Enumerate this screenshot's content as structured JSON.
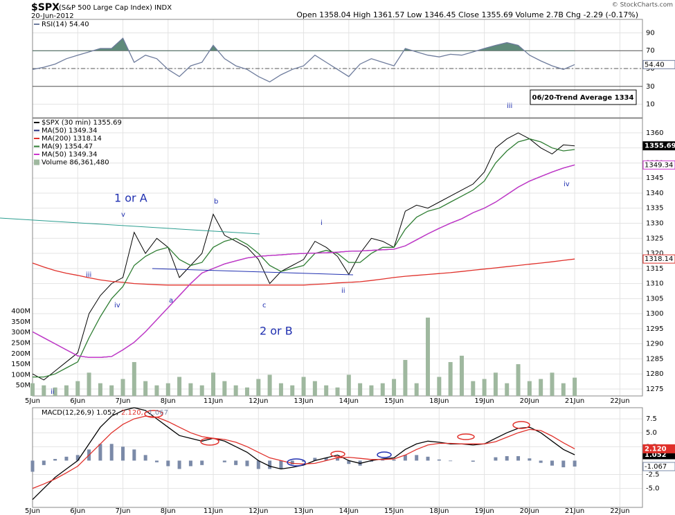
{
  "header": {
    "symbol": "$SPX",
    "name": "(S&P 500 Large Cap Index) INDX",
    "date": "20-Jun-2012",
    "quote": "Open 1358.04 High 1361.57 Low 1346.45 Close 1355.69 Volume 2.7B Chg -2.29 (-0.17%)",
    "copyright": "© StockCharts.com"
  },
  "annotations": [
    "1 or A",
    "v",
    "iii",
    "iv",
    "a",
    "b",
    "c",
    "2 or B",
    "i",
    "ii",
    "iii",
    "iv",
    "ii",
    "06/20-Trend Average 1334"
  ],
  "chart_data": [
    {
      "type": "line",
      "xlim": [
        0,
        13.5
      ],
      "xticks": [
        0,
        1,
        2,
        3,
        4,
        5,
        6,
        7,
        8,
        9,
        10,
        11,
        12,
        13
      ],
      "ylim": [
        -5.1,
        105.1
      ],
      "yticks": [
        90,
        70,
        50,
        30,
        10
      ],
      "levels": [
        70,
        30
      ],
      "midline": 50,
      "grid": true,
      "x": [
        0,
        0.25,
        0.5,
        0.75,
        1,
        1.25,
        1.5,
        1.75,
        2,
        2.25,
        2.5,
        2.75,
        3,
        3.25,
        3.5,
        3.75,
        4,
        4.25,
        4.5,
        4.75,
        5,
        5.25,
        5.5,
        5.75,
        6,
        6.25,
        6.5,
        6.75,
        7,
        7.25,
        7.5,
        7.75,
        8,
        8.25,
        8.5,
        8.75,
        9,
        9.25,
        9.5,
        9.75,
        10,
        10.25,
        10.5,
        10.75,
        11,
        11.25,
        11.5,
        11.75,
        12
      ],
      "series": [
        {
          "name": "RSI(14) 54.40",
          "color": "#6d7b9c",
          "shade_above": 70,
          "last_label": "54.40",
          "values": [
            49,
            51.5,
            55,
            61,
            65,
            68.6,
            72.5,
            72.5,
            84,
            57,
            65,
            61,
            49,
            41,
            53,
            57,
            76,
            61,
            53,
            49,
            41,
            35,
            43,
            49,
            53,
            65,
            57,
            49,
            41,
            55,
            61,
            57,
            53,
            72.5,
            68.6,
            65,
            63,
            66,
            65,
            68.6,
            72.5,
            76,
            79,
            76,
            65,
            58.5,
            53,
            49,
            54.4
          ]
        }
      ]
    },
    {
      "type": "line",
      "xlim": [
        0,
        13.5
      ],
      "ylim": [
        1272.7,
        1364.8
      ],
      "grid": true,
      "xticks": [
        {
          "value": 0,
          "label": "5Jun"
        },
        {
          "value": 1,
          "label": "6Jun"
        },
        {
          "value": 2,
          "label": "7Jun"
        },
        {
          "value": 3,
          "label": "8Jun"
        },
        {
          "value": 4,
          "label": "11Jun"
        },
        {
          "value": 5,
          "label": "12Jun"
        },
        {
          "value": 6,
          "label": "13Jun"
        },
        {
          "value": 7,
          "label": "14Jun"
        },
        {
          "value": 8,
          "label": "15Jun"
        },
        {
          "value": 9,
          "label": "18Jun"
        },
        {
          "value": 10,
          "label": "19Jun"
        },
        {
          "value": 11,
          "label": "20Jun"
        },
        {
          "value": 12,
          "label": "21Jun"
        },
        {
          "value": 13,
          "label": "22Jun"
        }
      ],
      "yticks": [
        1275,
        1280,
        1285,
        1290,
        1295,
        1300,
        1305,
        1310,
        1315,
        1320,
        1325,
        1330,
        1335,
        1340,
        1345,
        1350,
        1355,
        1360
      ],
      "x": [
        0,
        0.25,
        0.5,
        0.75,
        1,
        1.25,
        1.5,
        1.75,
        2,
        2.25,
        2.5,
        2.75,
        3,
        3.25,
        3.5,
        3.75,
        4,
        4.25,
        4.5,
        4.75,
        5,
        5.25,
        5.5,
        5.75,
        6,
        6.25,
        6.5,
        6.75,
        7,
        7.25,
        7.5,
        7.75,
        8,
        8.25,
        8.5,
        8.75,
        9,
        9.25,
        9.5,
        9.75,
        10,
        10.25,
        10.5,
        10.75,
        11,
        11.25,
        11.5,
        11.75,
        12
      ],
      "series": [
        {
          "name": "$SPX (30 min) 1355.69",
          "color": "#000000",
          "last_label": "1355.69",
          "values": [
            1280,
            1278,
            1281,
            1284,
            1287,
            1300,
            1306,
            1310,
            1312,
            1327,
            1320,
            1325,
            1322,
            1312,
            1316,
            1320,
            1333,
            1326,
            1324,
            1322,
            1318,
            1310,
            1314,
            1316,
            1318,
            1324,
            1322,
            1319,
            1313,
            1320,
            1325,
            1324,
            1322,
            1334,
            1336,
            1335,
            1337,
            1339,
            1341,
            1343,
            1347,
            1355,
            1358,
            1360,
            1358,
            1355,
            1353,
            1356,
            1355.69
          ]
        },
        {
          "name": "MA(50) 1349.34",
          "color": "#1f2a7a",
          "values": [
            1294,
            1292,
            1290,
            1288,
            1286,
            1285.5,
            1285.5,
            1285.8,
            1288,
            1290.5,
            1294,
            1298,
            1302,
            1306,
            1310,
            1313.5,
            1315,
            1316.5,
            1317.5,
            1318.5,
            1319,
            1319.3,
            1319.5,
            1319.8,
            1320,
            1320.1,
            1320.2,
            1320.4,
            1320.7,
            1320.8,
            1321,
            1321.2,
            1321.4,
            1322.5,
            1324.5,
            1326.5,
            1328.3,
            1330,
            1331.5,
            1333.5,
            1335,
            1337,
            1339.5,
            1342,
            1344,
            1345.5,
            1347,
            1348.3,
            1349.34
          ]
        },
        {
          "name": "MA(200) 1318.14",
          "color": "#e0302a",
          "last_label": "1318.14",
          "values": [
            1316.8,
            1315.5,
            1314.3,
            1313.4,
            1312.7,
            1311.9,
            1311.2,
            1310.7,
            1310.4,
            1310,
            1309.8,
            1309.6,
            1309.5,
            1309.5,
            1309.5,
            1309.5,
            1309.5,
            1309.5,
            1309.5,
            1309.5,
            1309.5,
            1309.5,
            1309.5,
            1309.5,
            1309.5,
            1309.7,
            1309.9,
            1310.2,
            1310.4,
            1310.6,
            1311,
            1311.5,
            1312,
            1312.4,
            1312.7,
            1313,
            1313.3,
            1313.6,
            1314,
            1314.4,
            1314.8,
            1315.2,
            1315.6,
            1316,
            1316.4,
            1316.8,
            1317.2,
            1317.7,
            1318.14
          ]
        },
        {
          "name": "MA(9) 1354.47",
          "color": "#2e7d32",
          "values": [
            1279,
            1279,
            1280,
            1282,
            1284,
            1292,
            1299,
            1305,
            1309,
            1316,
            1319,
            1321,
            1322,
            1318,
            1316,
            1317,
            1322,
            1324,
            1325,
            1323,
            1320,
            1316,
            1314,
            1315,
            1316,
            1320,
            1321,
            1320,
            1317,
            1317,
            1320,
            1322,
            1322,
            1328,
            1332,
            1334,
            1335,
            1337,
            1339,
            1341,
            1344,
            1350,
            1354,
            1357,
            1358,
            1357,
            1355,
            1354,
            1354.47
          ]
        },
        {
          "name": "MA(50) 1349.34",
          "color": "#cc33cc",
          "last_label": "1349.34",
          "values": [
            1294,
            1292,
            1290,
            1288,
            1286,
            1285.5,
            1285.5,
            1285.8,
            1288,
            1290.5,
            1294,
            1298,
            1302,
            1306,
            1310,
            1313.5,
            1315,
            1316.5,
            1317.5,
            1318.5,
            1319,
            1319.3,
            1319.5,
            1319.8,
            1320,
            1320.1,
            1320.2,
            1320.4,
            1320.7,
            1320.8,
            1321,
            1321.2,
            1321.4,
            1322.5,
            1324.5,
            1326.5,
            1328.3,
            1330,
            1331.5,
            1333.5,
            1335,
            1337,
            1339.5,
            1342,
            1344,
            1345.5,
            1347,
            1348.3,
            1349.34
          ]
        }
      ],
      "volume": {
        "type": "bar",
        "name": "Volume 86,361,480",
        "color": "#9fb89f",
        "ylim": [
          0,
          1311
        ],
        "yticks": [
          {
            "value": 50,
            "label": "50M"
          },
          {
            "value": 100,
            "label": "100M"
          },
          {
            "value": 150,
            "label": "150M"
          },
          {
            "value": 200,
            "label": "200M"
          },
          {
            "value": 250,
            "label": "250M"
          },
          {
            "value": 300,
            "label": "300M"
          },
          {
            "value": 350,
            "label": "350M"
          },
          {
            "value": 400,
            "label": "400M"
          }
        ],
        "values": [
          60,
          50,
          40,
          50,
          70,
          110,
          60,
          50,
          80,
          160,
          70,
          50,
          60,
          90,
          60,
          50,
          110,
          70,
          50,
          40,
          80,
          100,
          60,
          50,
          90,
          70,
          50,
          40,
          100,
          60,
          50,
          60,
          80,
          170,
          60,
          370,
          90,
          160,
          190,
          70,
          80,
          110,
          60,
          150,
          70,
          80,
          110,
          60,
          86.36
        ]
      }
    },
    {
      "type": "line",
      "xlim": [
        0,
        13.5
      ],
      "ylim": [
        -8.4,
        9.5
      ],
      "grid": true,
      "xticks": [
        {
          "value": 0,
          "label": "5Jun"
        },
        {
          "value": 1,
          "label": "6Jun"
        },
        {
          "value": 2,
          "label": "7Jun"
        },
        {
          "value": 3,
          "label": "8Jun"
        },
        {
          "value": 4,
          "label": "11Jun"
        },
        {
          "value": 5,
          "label": "12Jun"
        },
        {
          "value": 6,
          "label": "13Jun"
        },
        {
          "value": 7,
          "label": "14Jun"
        },
        {
          "value": 8,
          "label": "15Jun"
        },
        {
          "value": 9,
          "label": "18Jun"
        },
        {
          "value": 10,
          "label": "19Jun"
        },
        {
          "value": 11,
          "label": "20Jun"
        },
        {
          "value": 12,
          "label": "21Jun"
        },
        {
          "value": 13,
          "label": "22Jun"
        }
      ],
      "yticks": [
        7.5,
        {
          "value": 5,
          "label": "5.0"
        },
        2.5,
        -2.5,
        {
          "value": -5,
          "label": "-5.0"
        }
      ],
      "x": [
        0,
        0.25,
        0.5,
        0.75,
        1,
        1.25,
        1.5,
        1.75,
        2,
        2.25,
        2.5,
        2.75,
        3,
        3.25,
        3.5,
        3.75,
        4,
        4.25,
        4.5,
        4.75,
        5,
        5.25,
        5.5,
        5.75,
        6,
        6.25,
        6.5,
        6.75,
        7,
        7.25,
        7.5,
        7.75,
        8,
        8.25,
        8.5,
        8.75,
        9,
        9.25,
        9.5,
        9.75,
        10,
        10.25,
        10.5,
        10.75,
        11,
        11.25,
        11.5,
        11.75,
        12
      ],
      "series": [
        {
          "name": "MACD(12,26,9) 1.052,",
          "color": "#000000",
          "last_label": "1.052",
          "values": [
            -7,
            -5,
            -3,
            -1.5,
            0,
            3,
            6,
            8,
            9,
            9.5,
            9,
            7.5,
            6,
            4.5,
            4,
            3.5,
            4,
            3.5,
            2.5,
            1.5,
            0,
            -1,
            -1.5,
            -1.2,
            -0.8,
            0,
            0.5,
            1,
            0,
            -0.5,
            0,
            0.3,
            0.5,
            2,
            3,
            3.5,
            3.3,
            3,
            3,
            2.8,
            3,
            4,
            5,
            5.8,
            6,
            5,
            3.5,
            2,
            1.052
          ]
        },
        {
          "name": "2.120,",
          "color": "#e0302a",
          "last_label": "2.120",
          "values": [
            -5,
            -4.2,
            -3.3,
            -2.2,
            -1,
            1,
            3,
            5,
            6.5,
            7.5,
            8,
            7.8,
            7,
            6,
            5,
            4.3,
            4,
            3.8,
            3.3,
            2.5,
            1.5,
            0.5,
            0,
            -0.5,
            -0.6,
            -0.5,
            0,
            0.5,
            0.6,
            0.4,
            0.2,
            0.2,
            0.3,
            1,
            2,
            2.8,
            3.1,
            3.1,
            3,
            3,
            3,
            3.4,
            4.2,
            5,
            5.6,
            5.4,
            4.4,
            3.2,
            2.12
          ]
        }
      ],
      "histogram": {
        "type": "bar",
        "name": "-1.067",
        "color": "#7b8aa8",
        "last_label": "-1.067",
        "values": [
          -2,
          -0.8,
          0.3,
          0.7,
          1,
          2,
          3,
          3,
          2.5,
          2,
          1,
          -0.3,
          -1,
          -1.5,
          -1,
          -0.8,
          0,
          -0.3,
          -0.8,
          -1,
          -1.5,
          -1.5,
          -1.5,
          -0.7,
          -0.2,
          0.5,
          0.5,
          0.5,
          -0.6,
          -0.9,
          -0.2,
          0.1,
          0.2,
          1,
          1,
          0.7,
          0.2,
          -0.1,
          0,
          -0.2,
          0,
          0.6,
          0.8,
          0.8,
          0.4,
          -0.4,
          -0.9,
          -1.2,
          -1.067
        ]
      }
    }
  ]
}
